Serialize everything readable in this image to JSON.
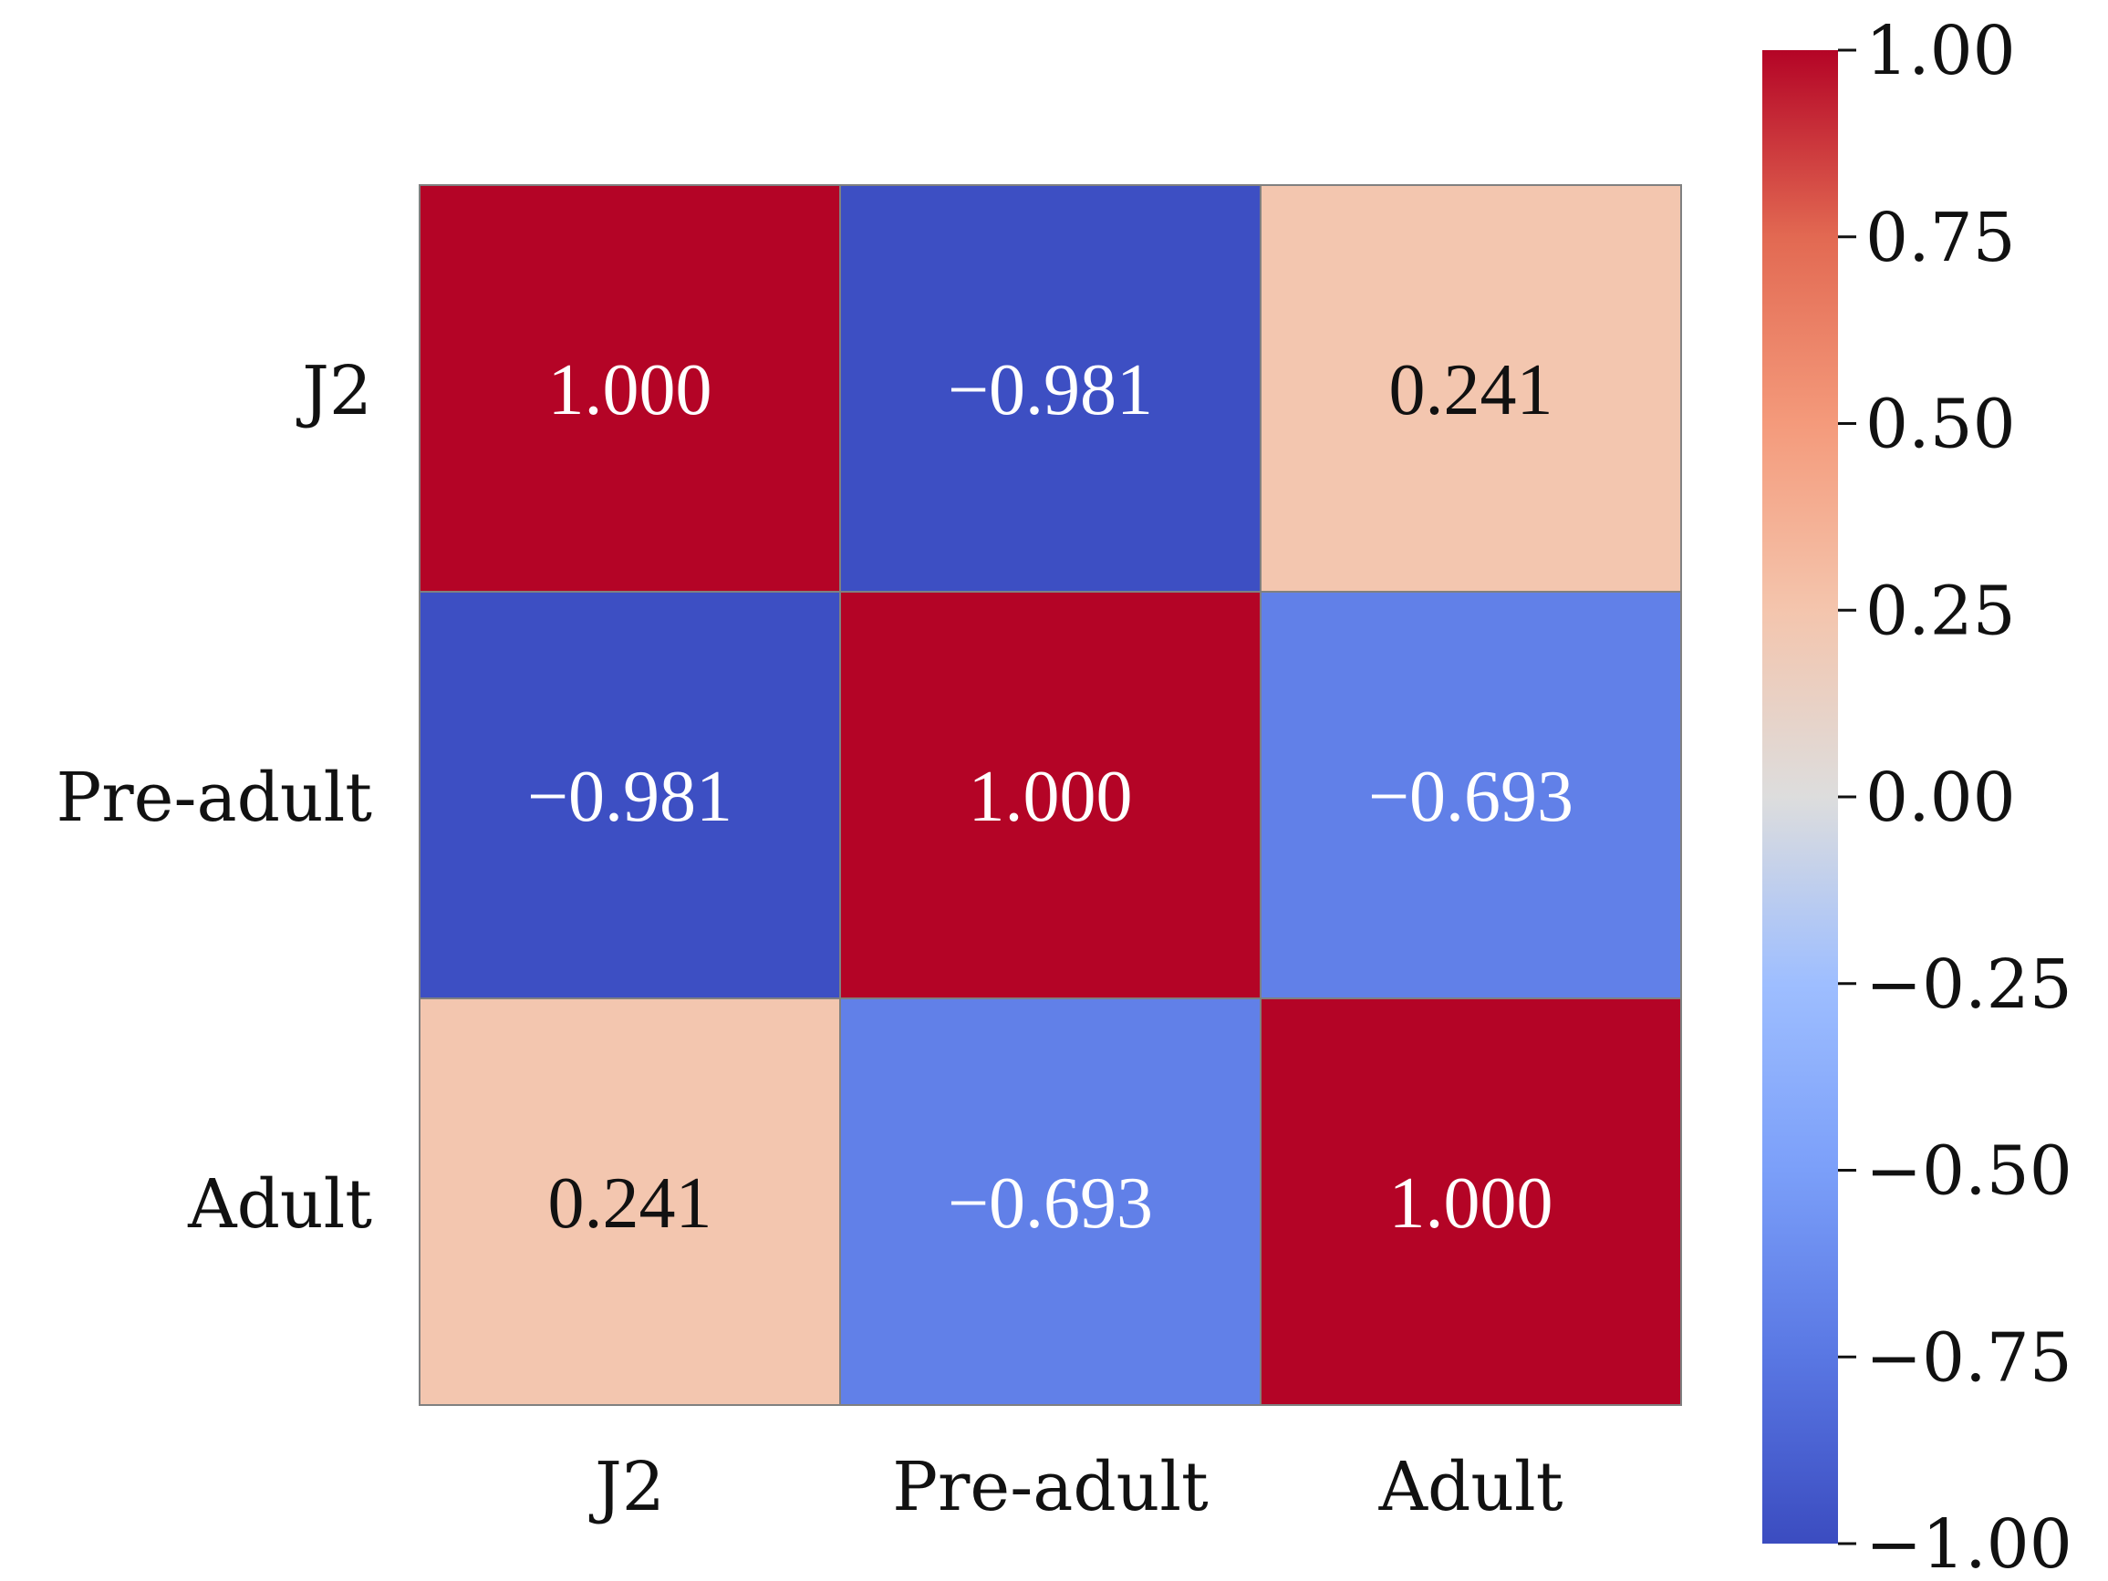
{
  "chart_data": {
    "type": "heatmap",
    "title": "",
    "xlabel": "",
    "ylabel": "",
    "row_labels": [
      "J2",
      "Pre-adult",
      "Adult"
    ],
    "col_labels": [
      "J2",
      "Pre-adult",
      "Adult"
    ],
    "values": [
      [
        1.0,
        -0.981,
        0.241
      ],
      [
        -0.981,
        1.0,
        -0.693
      ],
      [
        0.241,
        -0.693,
        1.0
      ]
    ],
    "value_labels": [
      [
        "1.000",
        "−0.981",
        "0.241"
      ],
      [
        "−0.981",
        "1.000",
        "−0.693"
      ],
      [
        "0.241",
        "−0.693",
        "1.000"
      ]
    ],
    "colormap": "coolwarm",
    "vmin": -1.0,
    "vmax": 1.0,
    "colorbar": {
      "ticks": [
        1.0,
        0.75,
        0.5,
        0.25,
        0.0,
        -0.25,
        -0.5,
        -0.75,
        -1.0
      ],
      "tick_labels": [
        "1.00",
        "0.75",
        "0.50",
        "0.25",
        "0.00",
        "−0.25",
        "−0.50",
        "−0.75",
        "−1.00"
      ],
      "position": "right"
    },
    "colors": {
      "high": "#b40426",
      "mid": "#dddddd",
      "low": "#3b4cc0",
      "cell_border": "#808080",
      "text_dark": "#111111",
      "text_light": "#ffffff"
    }
  }
}
